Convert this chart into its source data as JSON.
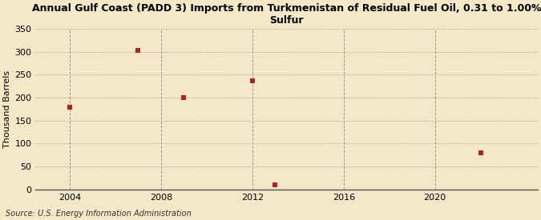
{
  "title": "Annual Gulf Coast (PADD 3) Imports from Turkmenistan of Residual Fuel Oil, 0.31 to 1.00%\nSulfur",
  "ylabel": "Thousand Barrels",
  "source": "Source: U.S. Energy Information Administration",
  "background_color": "#f5e8c8",
  "data_points": [
    {
      "year": 2004,
      "value": 180
    },
    {
      "year": 2007,
      "value": 303
    },
    {
      "year": 2009,
      "value": 200
    },
    {
      "year": 2012,
      "value": 236
    },
    {
      "year": 2013,
      "value": 10
    },
    {
      "year": 2022,
      "value": 80
    }
  ],
  "marker_color": "#b22222",
  "marker_size": 4,
  "xlim": [
    2002.5,
    2024.5
  ],
  "ylim": [
    0,
    350
  ],
  "yticks": [
    0,
    50,
    100,
    150,
    200,
    250,
    300,
    350
  ],
  "xticks": [
    2004,
    2008,
    2012,
    2016,
    2020
  ],
  "grid_color": "#999999",
  "title_fontsize": 9,
  "ylabel_fontsize": 8,
  "tick_fontsize": 8,
  "source_fontsize": 7
}
